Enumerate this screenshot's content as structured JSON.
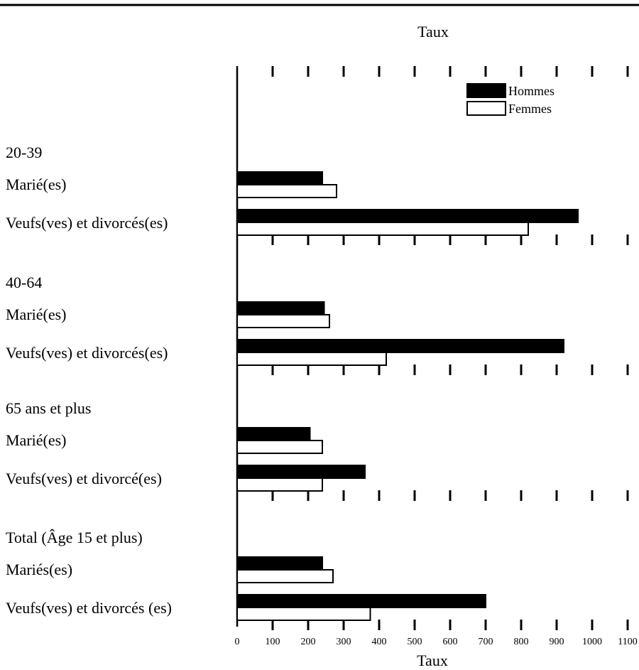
{
  "chart_data": {
    "type": "bar",
    "orientation": "horizontal",
    "top_title": "Taux",
    "xlabel": "Taux",
    "xlim": [
      0,
      1100
    ],
    "xticks": [
      "0",
      "100",
      "200",
      "300",
      "400",
      "500",
      "600",
      "700",
      "800",
      "900",
      "1000",
      "1100"
    ],
    "legend": {
      "position": "top-right",
      "entries": [
        "Hommes",
        "Femmes"
      ]
    },
    "series": [
      {
        "name": "Hommes",
        "color": "#000000"
      },
      {
        "name": "Femmes",
        "color": "#ffffff"
      }
    ],
    "groups": [
      {
        "title": "20-39",
        "rows": [
          {
            "label": "Marié(es)",
            "values": [
              240,
              280
            ]
          },
          {
            "label": "Veufs(ves) et divorcés(es)",
            "values": [
              960,
              820
            ]
          }
        ]
      },
      {
        "title": "40-64",
        "rows": [
          {
            "label": "Marié(es)",
            "values": [
              245,
              260
            ]
          },
          {
            "label": "Veufs(ves) et divorcés(es)",
            "values": [
              920,
              420
            ]
          }
        ]
      },
      {
        "title": "65 ans et plus",
        "rows": [
          {
            "label": "Marié(es)",
            "values": [
              205,
              240
            ]
          },
          {
            "label": "Veufs(ves) et divorcé(es)",
            "values": [
              360,
              240
            ]
          }
        ]
      },
      {
        "title": "Total (Âge 15 et plus)",
        "rows": [
          {
            "label": "Mariés(es)",
            "values": [
              240,
              270
            ]
          },
          {
            "label": "Veufs(ves) et divorcés (es)",
            "values": [
              700,
              375
            ]
          }
        ]
      }
    ]
  }
}
